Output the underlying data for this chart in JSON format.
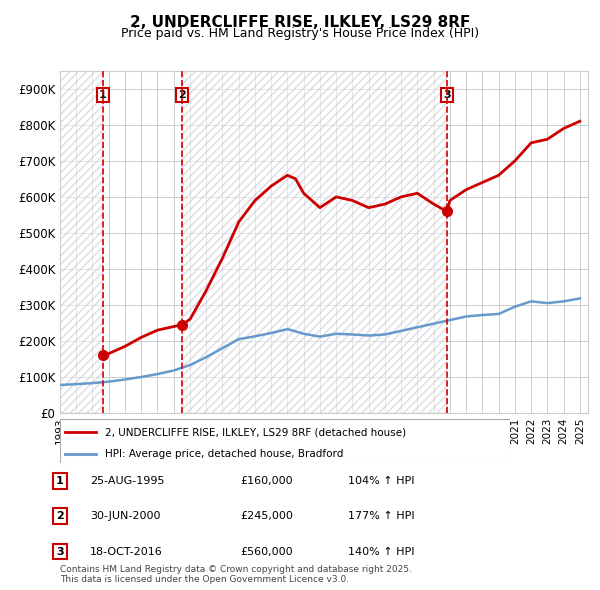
{
  "title1": "2, UNDERCLIFFE RISE, ILKLEY, LS29 8RF",
  "title2": "Price paid vs. HM Land Registry's House Price Index (HPI)",
  "legend_property": "2, UNDERCLIFFE RISE, ILKLEY, LS29 8RF (detached house)",
  "legend_hpi": "HPI: Average price, detached house, Bradford",
  "footnote": "Contains HM Land Registry data © Crown copyright and database right 2025.\nThis data is licensed under the Open Government Licence v3.0.",
  "transactions": [
    {
      "label": "1",
      "date": "25-AUG-1995",
      "price": 160000,
      "pct": "104%",
      "year_x": 1995.65
    },
    {
      "label": "2",
      "date": "30-JUN-2000",
      "price": 245000,
      "pct": "177%",
      "year_x": 2000.5
    },
    {
      "label": "3",
      "date": "18-OCT-2016",
      "price": 560000,
      "pct": "140%",
      "year_x": 2016.8
    }
  ],
  "hpi_line": {
    "years": [
      1993,
      1994,
      1995,
      1996,
      1997,
      1998,
      1999,
      2000,
      2001,
      2002,
      2003,
      2004,
      2005,
      2006,
      2007,
      2008,
      2009,
      2010,
      2011,
      2012,
      2013,
      2014,
      2015,
      2016,
      2017,
      2018,
      2019,
      2020,
      2021,
      2022,
      2023,
      2024,
      2025
    ],
    "values": [
      78000,
      80000,
      83000,
      87000,
      93000,
      100000,
      108000,
      118000,
      133000,
      155000,
      180000,
      205000,
      213000,
      222000,
      233000,
      220000,
      212000,
      220000,
      218000,
      215000,
      218000,
      228000,
      238000,
      248000,
      258000,
      268000,
      272000,
      275000,
      295000,
      310000,
      305000,
      310000,
      318000
    ]
  },
  "property_line": {
    "segments": [
      {
        "years": [
          1995.65,
          1996,
          1997,
          1998,
          1999,
          2000,
          2000.5
        ],
        "values": [
          160000,
          165000,
          185000,
          210000,
          230000,
          240000,
          245000
        ]
      },
      {
        "years": [
          2000.5,
          2001,
          2002,
          2003,
          2004,
          2005,
          2006,
          2007,
          2007.5,
          2008,
          2008.5,
          2009,
          2010,
          2011,
          2012,
          2013,
          2014,
          2015,
          2016,
          2016.8
        ],
        "values": [
          245000,
          260000,
          340000,
          430000,
          530000,
          590000,
          630000,
          660000,
          650000,
          610000,
          590000,
          570000,
          600000,
          590000,
          570000,
          580000,
          600000,
          610000,
          580000,
          560000
        ]
      },
      {
        "years": [
          2016.8,
          2017,
          2018,
          2019,
          2020,
          2021,
          2022,
          2023,
          2024,
          2025
        ],
        "values": [
          560000,
          590000,
          620000,
          640000,
          660000,
          700000,
          750000,
          760000,
          790000,
          810000
        ]
      }
    ]
  },
  "ylim": [
    0,
    950000
  ],
  "xlim": [
    1993,
    2025.5
  ],
  "yticks": [
    0,
    100000,
    200000,
    300000,
    400000,
    500000,
    600000,
    700000,
    800000,
    900000
  ],
  "ytick_labels": [
    "£0",
    "£100K",
    "£200K",
    "£300K",
    "£400K",
    "£500K",
    "£600K",
    "£700K",
    "£800K",
    "£900K"
  ],
  "xticks": [
    1993,
    1994,
    1995,
    1996,
    1997,
    1998,
    1999,
    2000,
    2001,
    2002,
    2003,
    2004,
    2005,
    2006,
    2007,
    2008,
    2009,
    2010,
    2011,
    2012,
    2013,
    2014,
    2015,
    2016,
    2017,
    2018,
    2019,
    2020,
    2021,
    2022,
    2023,
    2024,
    2025
  ],
  "hatch_region_end": 1995.65,
  "hatch_region2_start": 2000.5,
  "hatch_region2_end": 2016.8,
  "colors": {
    "property_line": "#cc0000",
    "hpi_line": "#6699cc",
    "transaction_vline": "#cc0000",
    "transaction_marker": "#cc0000",
    "hatch_fill": "#ddeeff",
    "hatch_color": "#aaaacc",
    "label_box_color": "#cc0000",
    "background": "#ffffff",
    "grid": "#cccccc"
  }
}
